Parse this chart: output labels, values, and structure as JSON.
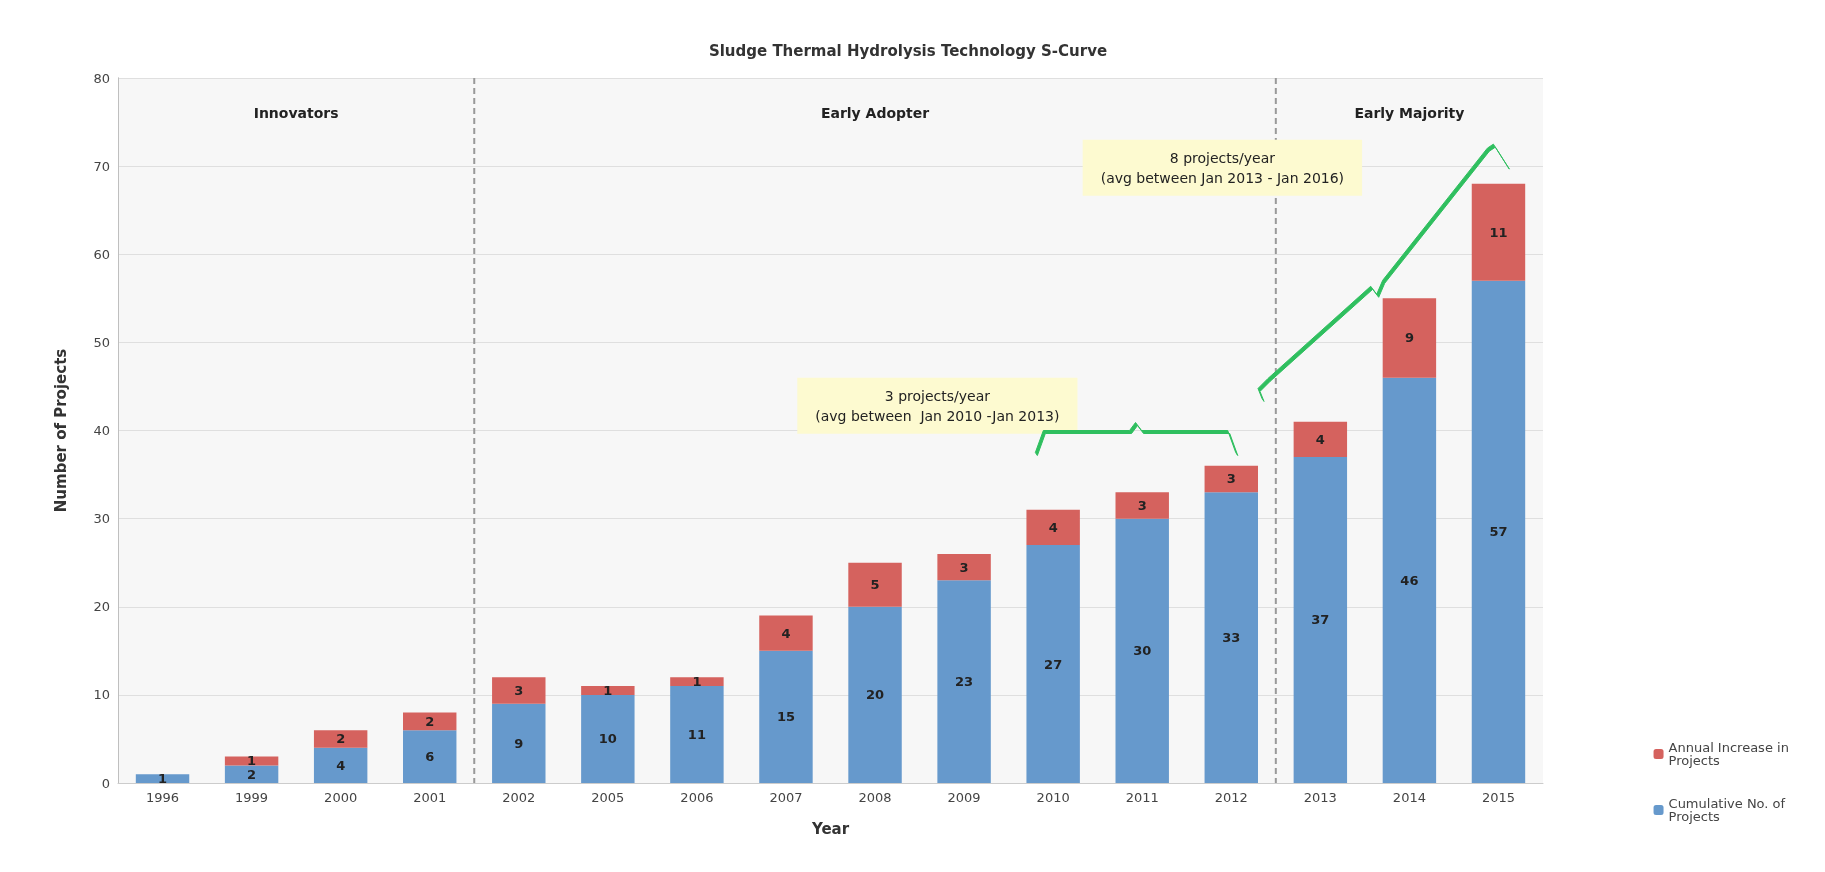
{
  "chart_data": {
    "type": "bar",
    "title": "Sludge Thermal Hydrolysis Technology S-Curve",
    "xlabel": "Year",
    "ylabel": "Number of Projects",
    "categories": [
      "1996",
      "1999",
      "2000",
      "2001",
      "2002",
      "2005",
      "2006",
      "2007",
      "2008",
      "2009",
      "2010",
      "2011",
      "2012",
      "2013",
      "2014",
      "2015"
    ],
    "stacked": true,
    "series": [
      {
        "name": "Cumulative No. of Projects",
        "color": "#6699cc",
        "values": [
          1,
          2,
          4,
          6,
          9,
          10,
          11,
          15,
          20,
          23,
          27,
          30,
          33,
          37,
          46,
          57
        ]
      },
      {
        "name": "Annual Increase in Projects",
        "color": "#d5625e",
        "values": [
          null,
          1,
          2,
          2,
          3,
          1,
          1,
          4,
          5,
          3,
          4,
          3,
          3,
          4,
          9,
          11
        ]
      }
    ],
    "data_labels": true,
    "ylim": [
      0,
      80
    ],
    "yticks": [
      0,
      10,
      20,
      30,
      40,
      50,
      60,
      70,
      80
    ],
    "grid": "y",
    "legend": "bottom right",
    "bands": [
      {
        "axis": "x",
        "from": "1996",
        "to": "2001",
        "label": "Innovators",
        "color": "#eeeeee"
      },
      {
        "axis": "x",
        "from": "2002",
        "to": "2012",
        "label": "Early Adopter",
        "color": "#eeeeee"
      },
      {
        "axis": "x",
        "from": "2013",
        "to": "2015",
        "label": "Early Majority",
        "color": "#eeeeee"
      }
    ],
    "annotations": [
      "3 projects/year\n(avg between  Jan 2010 -Jan 2013)",
      "8 projects/year\n(avg between Jan 2013 - Jan 2016)"
    ]
  }
}
